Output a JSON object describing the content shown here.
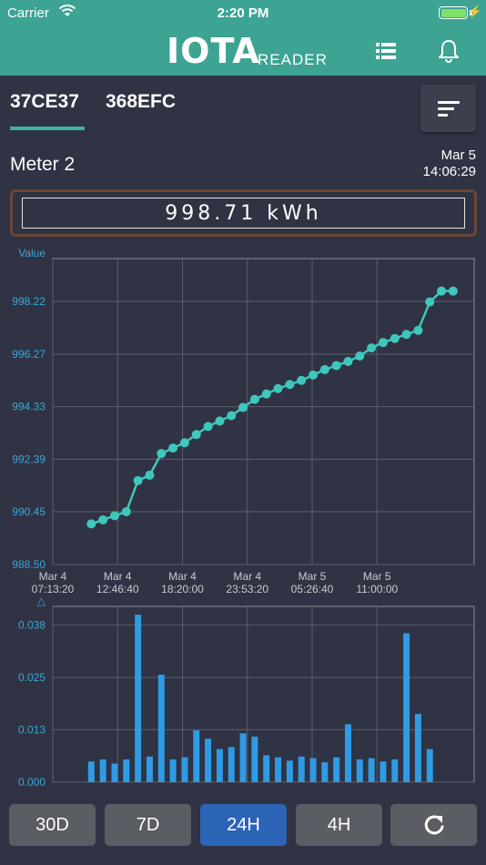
{
  "status_bar": {
    "carrier": "Carrier",
    "time": "2:20 PM"
  },
  "header": {
    "logo_text": "IOTA",
    "logo_sub": "READER",
    "list_icon": "list-icon",
    "bell_icon": "bell-icon"
  },
  "tabs": [
    {
      "label": "37CE37",
      "active": true
    },
    {
      "label": "368EFC",
      "active": false
    }
  ],
  "sort_icon": "sort-icon",
  "meter": {
    "name": "Meter 2",
    "date": "Mar 5",
    "time": "14:06:29",
    "reading": "998.71 kWh"
  },
  "range_buttons": [
    {
      "label": "30D",
      "active": false
    },
    {
      "label": "7D",
      "active": false
    },
    {
      "label": "24H",
      "active": true
    },
    {
      "label": "4H",
      "active": false
    }
  ],
  "refresh_icon": "refresh-icon",
  "colors": {
    "header": "#3da393",
    "line": "#3ec8bd",
    "bar": "#2f9be5",
    "active_button": "#2c64b6",
    "accent_text": "#3aa7d9"
  },
  "chart_data": [
    {
      "type": "line",
      "ylabel": "Value",
      "ylim": [
        988.5,
        999.8
      ],
      "ytick_labels": [
        "988.50",
        "990.45",
        "992.39",
        "994.33",
        "996.27",
        "998.22"
      ],
      "yticks": [
        988.5,
        990.45,
        992.39,
        994.33,
        996.27,
        998.22
      ],
      "xtick_labels": [
        [
          "Mar 4",
          "07:13:20"
        ],
        [
          "Mar 4",
          "12:46:40"
        ],
        [
          "Mar 4",
          "18:20:00"
        ],
        [
          "Mar 4",
          "23:53:20"
        ],
        [
          "Mar 5",
          "05:26:40"
        ],
        [
          "Mar 5",
          "11:00:00"
        ]
      ],
      "x_hours": [
        3.3,
        4.3,
        5.3,
        6.3,
        7.3,
        8.3,
        9.3,
        10.3,
        11.3,
        12.3,
        13.3,
        14.3,
        15.3,
        16.3,
        17.3,
        18.3,
        19.3,
        20.3,
        21.3,
        22.3,
        23.3,
        24.3,
        25.3,
        26.3,
        27.3,
        28.3,
        29.3,
        30.3,
        31.3,
        32.3,
        33.3,
        34.3
      ],
      "values": [
        990.0,
        990.15,
        990.3,
        990.45,
        991.6,
        991.8,
        992.6,
        992.8,
        993.0,
        993.3,
        993.6,
        993.8,
        994.0,
        994.3,
        994.6,
        994.8,
        995.0,
        995.15,
        995.3,
        995.5,
        995.7,
        995.85,
        996.0,
        996.2,
        996.5,
        996.7,
        996.85,
        997.0,
        997.15,
        998.2,
        998.6,
        998.6
      ],
      "grid": true
    },
    {
      "type": "bar",
      "ylabel": "△",
      "ylim": [
        0,
        0.0425
      ],
      "ytick_labels": [
        "0.000",
        "0.013",
        "0.025",
        "0.038"
      ],
      "yticks": [
        0,
        0.0127,
        0.0253,
        0.038
      ],
      "x_hours": [
        3.3,
        4.3,
        5.3,
        6.3,
        7.3,
        8.3,
        9.3,
        10.3,
        11.3,
        12.3,
        13.3,
        14.3,
        15.3,
        16.3,
        17.3,
        18.3,
        19.3,
        20.3,
        21.3,
        22.3,
        23.3,
        24.3,
        25.3,
        26.3,
        27.3,
        28.3,
        29.3,
        30.3,
        31.3,
        32.3,
        33.3,
        34.3
      ],
      "values": [
        0.005,
        0.0055,
        0.0045,
        0.0055,
        0.0405,
        0.0062,
        0.026,
        0.0055,
        0.006,
        0.0125,
        0.0105,
        0.008,
        0.0085,
        0.0118,
        0.011,
        0.0065,
        0.006,
        0.0052,
        0.0062,
        0.0058,
        0.0048,
        0.006,
        0.014,
        0.0055,
        0.0058,
        0.005,
        0.0055,
        0.036,
        0.0165,
        0.008,
        0.0,
        0.0
      ],
      "grid": true
    }
  ]
}
